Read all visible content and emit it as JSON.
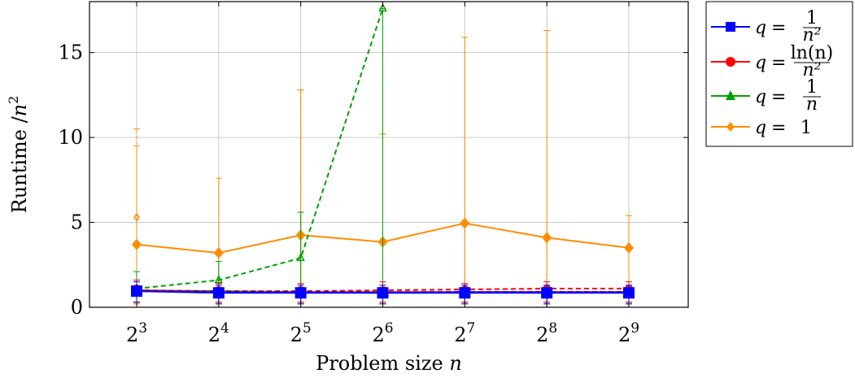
{
  "chart_data": {
    "type": "line",
    "xlabel_text": "Problem size",
    "xlabel_var": "n",
    "ylabel_text": "Runtime /",
    "ylabel_var": "n",
    "ylabel_exp": "2",
    "x_base": "2",
    "x_exponents": [
      "3",
      "4",
      "5",
      "6",
      "7",
      "8",
      "9"
    ],
    "x": [
      8,
      16,
      32,
      64,
      128,
      256,
      512
    ],
    "xscale": "log2",
    "y_ticks": [
      0,
      5,
      10,
      15
    ],
    "ylim": [
      0,
      18
    ],
    "grid": true,
    "legend_position": "outside-right",
    "series": [
      {
        "name": "q = 1/n²",
        "legend_lhs": "q",
        "legend_num": "1",
        "legend_den": "n²",
        "color": "#0000ff",
        "marker": "square",
        "dashed_values": [
          0.95,
          0.92,
          0.9,
          0.88,
          0.9,
          0.9,
          0.9
        ],
        "values": [
          0.95,
          0.85,
          0.85,
          0.85,
          0.85,
          0.85,
          0.85
        ],
        "err_high": [
          1.5,
          1.3,
          1.3,
          1.3,
          1.3,
          1.3,
          1.3
        ],
        "err_low": [
          0.3,
          0.2,
          0.2,
          0.2,
          0.2,
          0.2,
          0.2
        ]
      },
      {
        "name": "q = ln(n)/n²",
        "legend_lhs": "q",
        "legend_num": "ln(n)",
        "legend_den": "n²",
        "color": "#ff0000",
        "marker": "circle",
        "dashed_values": [
          1.0,
          0.95,
          0.95,
          1.0,
          1.05,
          1.1,
          1.1
        ],
        "values": [
          1.0,
          0.9,
          0.9,
          0.9,
          0.9,
          0.9,
          0.9
        ],
        "err_high": [
          1.6,
          1.4,
          1.4,
          1.5,
          1.4,
          1.5,
          1.5
        ],
        "err_low": [
          0.3,
          0.3,
          0.3,
          0.3,
          0.3,
          0.3,
          0.3
        ]
      },
      {
        "name": "q = 1/n",
        "legend_lhs": "q",
        "legend_num": "1",
        "legend_den": "n",
        "color": "#00a000",
        "marker": "triangle",
        "dashed_values": [
          1.1,
          1.6,
          2.9,
          17.6,
          null,
          null,
          null
        ],
        "values": [
          1.0,
          0.95,
          0.9,
          0.85,
          0.9,
          0.9,
          0.9
        ],
        "err_high": [
          2.1,
          2.7,
          5.6,
          17.6,
          1.2,
          1.2,
          1.2
        ],
        "err_low": [
          0.3,
          0.3,
          0.3,
          0.3,
          0.3,
          0.3,
          0.3
        ]
      },
      {
        "name": "q = 1",
        "legend_lhs": "q",
        "legend_rhs": "1",
        "color": "#ff8c00",
        "marker": "diamond",
        "dashed_values": [
          5.3,
          null,
          null,
          null,
          null,
          null,
          null
        ],
        "dashed_err_high": [
          10.5,
          null,
          12.8,
          10.2,
          null,
          null,
          null
        ],
        "values": [
          3.7,
          3.2,
          4.25,
          3.85,
          4.95,
          4.1,
          3.5
        ],
        "err_high": [
          9.5,
          7.6,
          12.8,
          10.2,
          15.9,
          16.3,
          5.4
        ],
        "err_low": [
          0.2,
          0.2,
          0.2,
          0.2,
          0.2,
          0.2,
          0.2
        ]
      }
    ]
  }
}
